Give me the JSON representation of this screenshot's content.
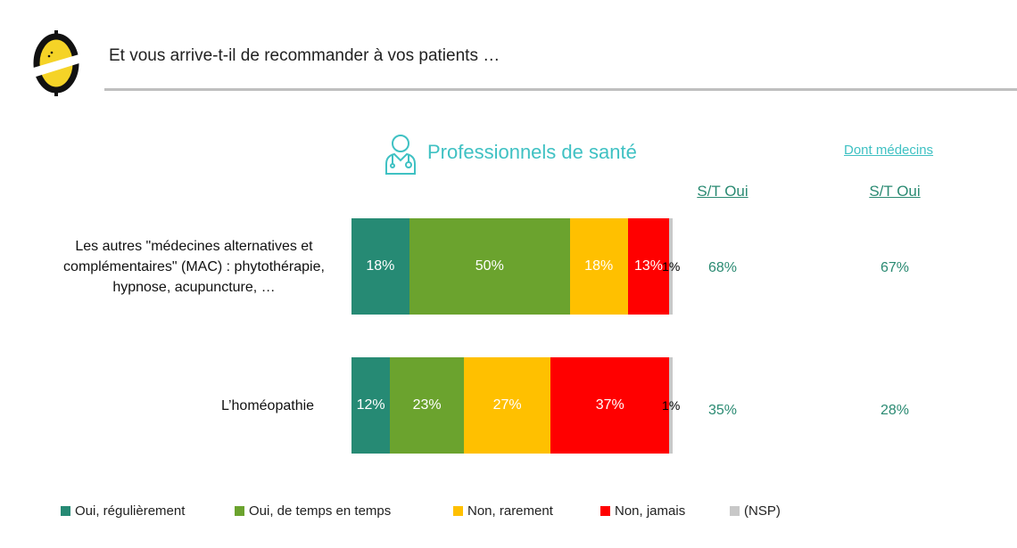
{
  "header": {
    "title": "Et vous arrive-t-il de recommander à vos patients …"
  },
  "chart_data": {
    "type": "bar",
    "orientation": "horizontal-stacked-100",
    "title": "Professionnels de santé",
    "categories": [
      "Les autres \"médecines alternatives et complémentaires\" (MAC) : phytothérapie, hypnose, acupuncture, …",
      "L’homéopathie"
    ],
    "series": [
      {
        "name": "Oui, régulièrement",
        "color": "#268a74",
        "values": [
          18,
          12
        ]
      },
      {
        "name": "Oui, de temps en temps",
        "color": "#6ba32e",
        "values": [
          50,
          23
        ]
      },
      {
        "name": "Non, rarement",
        "color": "#ffc000",
        "values": [
          18,
          27
        ]
      },
      {
        "name": "Non, jamais",
        "color": "#ff0000",
        "values": [
          13,
          37
        ]
      },
      {
        "name": "(NSP)",
        "color": "#c8c8c8",
        "values": [
          1,
          1
        ]
      }
    ],
    "st_oui_header": "S/T Oui",
    "st_oui": [
      "68%",
      "35%"
    ],
    "dont_medecins_header": "Dont médecins",
    "dont_medecins_st_oui_header": "S/T Oui",
    "dont_medecins_st_oui": [
      "67%",
      "28%"
    ]
  }
}
